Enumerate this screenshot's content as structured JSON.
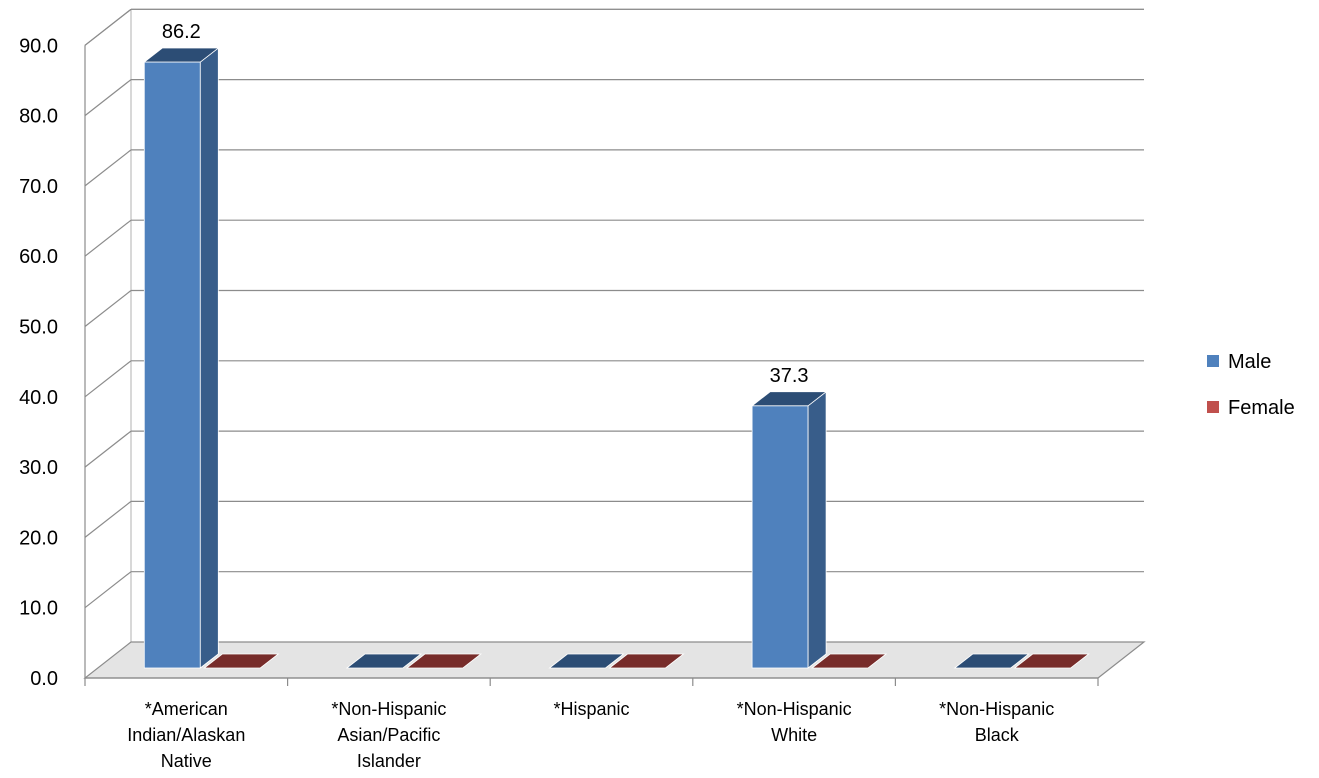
{
  "chart_data": {
    "type": "bar",
    "style": "3d-clustered-column",
    "categories": [
      "*American Indian/Alaskan Native",
      "*Non-Hispanic Asian/Pacific Islander",
      "*Hispanic",
      "*Non-Hispanic White",
      "*Non-Hispanic Black"
    ],
    "category_lines": [
      [
        "*American",
        "Indian/Alaskan",
        "Native"
      ],
      [
        "*Non-Hispanic",
        "Asian/Pacific",
        "Islander"
      ],
      [
        "*Hispanic"
      ],
      [
        "*Non-Hispanic",
        "White"
      ],
      [
        "*Non-Hispanic",
        "Black"
      ]
    ],
    "series": [
      {
        "name": "Male",
        "values": [
          86.2,
          0,
          0,
          37.3,
          0
        ],
        "color": "#4F81BD",
        "side_color": "#385D8A",
        "top_color": "#2C4D75"
      },
      {
        "name": "Female",
        "values": [
          0,
          0,
          0,
          0,
          0
        ],
        "color": "#C0504D",
        "side_color": "#8C3836",
        "top_color": "#772C2A"
      }
    ],
    "data_labels": [
      {
        "series": 0,
        "category": 0,
        "text": "86.2"
      },
      {
        "series": 0,
        "category": 3,
        "text": "37.3"
      }
    ],
    "y_ticks": [
      "0.0",
      "10.0",
      "20.0",
      "30.0",
      "40.0",
      "50.0",
      "60.0",
      "70.0",
      "80.0",
      "90.0"
    ],
    "ylim": [
      0,
      90
    ],
    "grid": true,
    "legend": "right",
    "title": "",
    "xlabel": "",
    "ylabel": ""
  }
}
